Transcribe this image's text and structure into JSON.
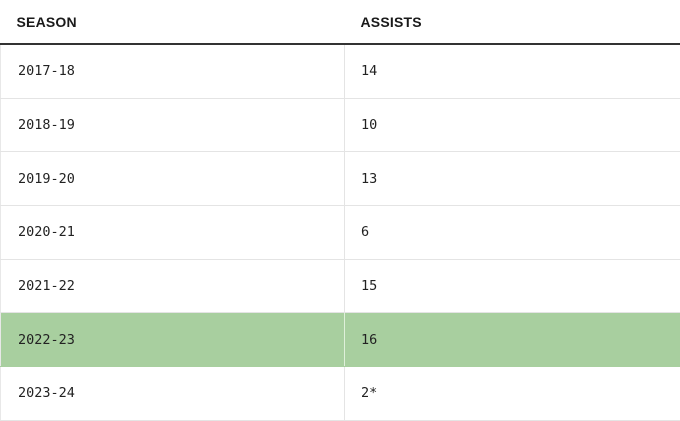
{
  "table": {
    "headers": {
      "season": "SEASON",
      "assists": "ASSISTS"
    },
    "highlight_color": "#a8cf9f",
    "rows": [
      {
        "season": "2017-18",
        "assists": "14",
        "highlighted": false
      },
      {
        "season": "2018-19",
        "assists": "10",
        "highlighted": false
      },
      {
        "season": "2019-20",
        "assists": "13",
        "highlighted": false
      },
      {
        "season": "2020-21",
        "assists": "6",
        "highlighted": false
      },
      {
        "season": "2021-22",
        "assists": "15",
        "highlighted": false
      },
      {
        "season": "2022-23",
        "assists": "16",
        "highlighted": true
      },
      {
        "season": "2023-24",
        "assists": "2*",
        "highlighted": false
      }
    ]
  }
}
